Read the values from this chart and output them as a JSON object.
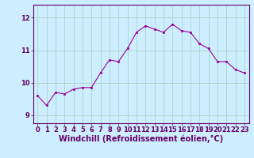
{
  "x": [
    0,
    1,
    2,
    3,
    4,
    5,
    6,
    7,
    8,
    9,
    10,
    11,
    12,
    13,
    14,
    15,
    16,
    17,
    18,
    19,
    20,
    21,
    22,
    23
  ],
  "y": [
    9.6,
    9.3,
    9.7,
    9.65,
    9.8,
    9.85,
    9.85,
    10.3,
    10.7,
    10.65,
    11.05,
    11.55,
    11.75,
    11.65,
    11.55,
    11.8,
    11.6,
    11.55,
    11.2,
    11.05,
    10.65,
    10.65,
    10.4,
    10.3
  ],
  "line_color": "#990099",
  "marker_color": "#990099",
  "bg_color": "#cceeff",
  "grid_color": "#aaccbb",
  "xlabel": "Windchill (Refroidissement éolien,°C)",
  "ylabel": "",
  "ylim": [
    8.75,
    12.4
  ],
  "xlim": [
    -0.5,
    23.5
  ],
  "yticks": [
    9,
    10,
    11,
    12
  ],
  "xticks": [
    0,
    1,
    2,
    3,
    4,
    5,
    6,
    7,
    8,
    9,
    10,
    11,
    12,
    13,
    14,
    15,
    16,
    17,
    18,
    19,
    20,
    21,
    22,
    23
  ],
  "title": "",
  "label_fontsize": 7,
  "tick_fontsize": 6,
  "text_color": "#660066"
}
